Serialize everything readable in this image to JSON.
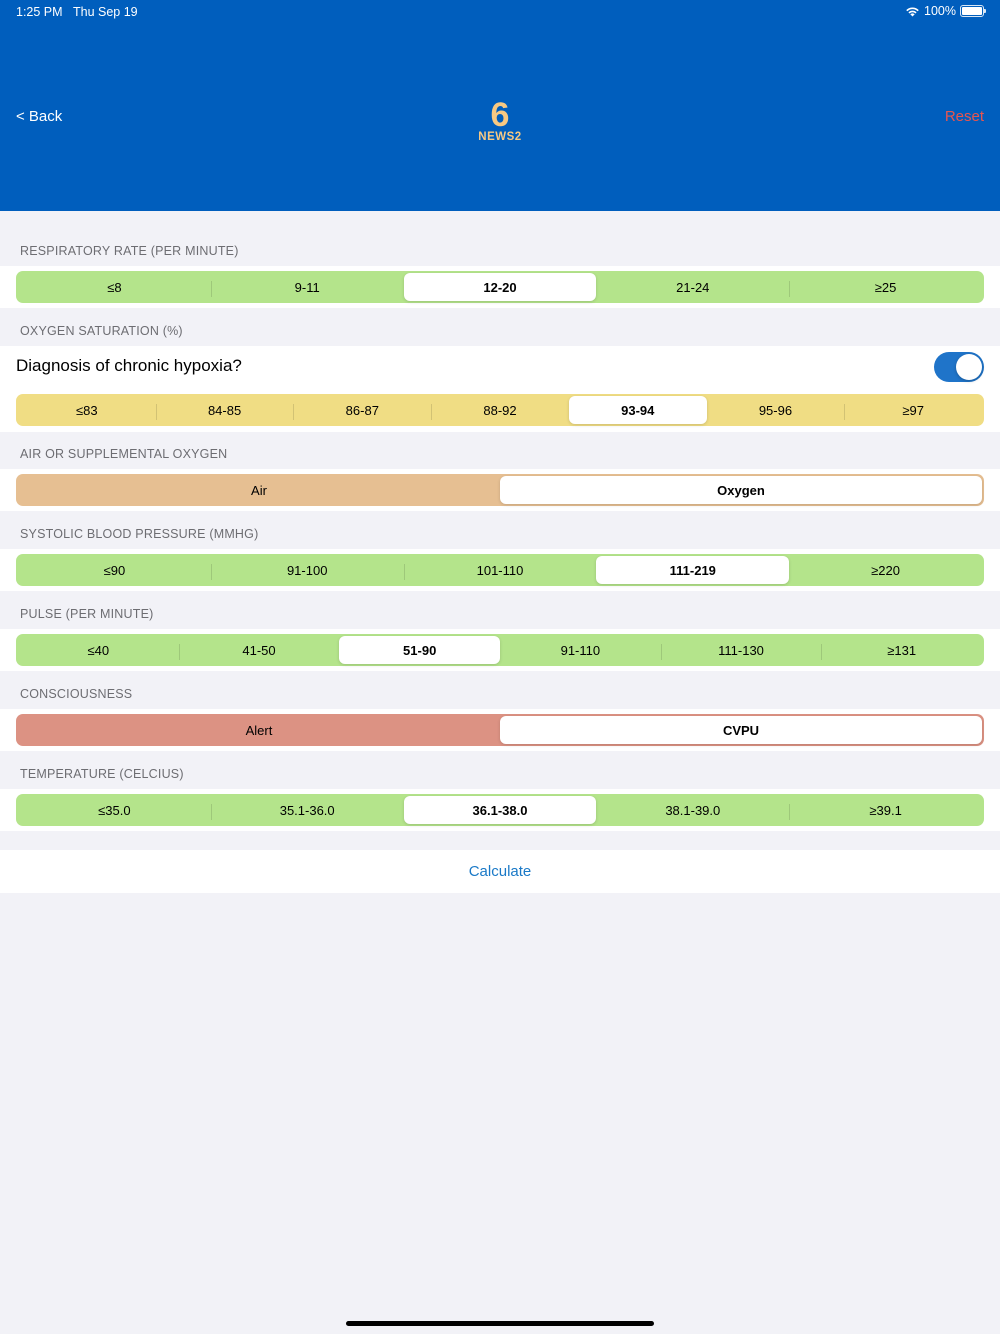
{
  "status_bar": {
    "time": "1:25 PM",
    "date": "Thu Sep 19",
    "battery": "100%"
  },
  "header": {
    "back_label": "< Back",
    "reset_label": "Reset",
    "score": "6",
    "score_label": "NEWS2"
  },
  "sections": {
    "respiratory": {
      "label": "RESPIRATORY RATE (PER MINUTE)",
      "options": [
        "≤8",
        "9-11",
        "12-20",
        "21-24",
        "≥25"
      ],
      "selected": "12-20"
    },
    "oxygen_sat": {
      "label": "OXYGEN SATURATION (%)",
      "hypoxia_label": "Diagnosis of chronic hypoxia?",
      "hypoxia_on": true,
      "options": [
        "≤83",
        "84-85",
        "86-87",
        "88-92",
        "93-94",
        "95-96",
        "≥97"
      ],
      "selected": "93-94"
    },
    "air": {
      "label": "AIR OR SUPPLEMENTAL OXYGEN",
      "options": [
        "Air",
        "Oxygen"
      ],
      "selected": "Oxygen"
    },
    "systolic": {
      "label": "SYSTOLIC BLOOD PRESSURE (MMHG)",
      "options": [
        "≤90",
        "91-100",
        "101-110",
        "111-219",
        "≥220"
      ],
      "selected": "111-219"
    },
    "pulse": {
      "label": "PULSE (PER MINUTE)",
      "options": [
        "≤40",
        "41-50",
        "51-90",
        "91-110",
        "111-130",
        "≥131"
      ],
      "selected": "51-90"
    },
    "consciousness": {
      "label": "CONSCIOUSNESS",
      "options": [
        "Alert",
        "CVPU"
      ],
      "selected": "CVPU"
    },
    "temperature": {
      "label": "TEMPERATURE (CELCIUS)",
      "options": [
        "≤35.0",
        "35.1-36.0",
        "36.1-38.0",
        "38.1-39.0",
        "≥39.1"
      ],
      "selected": "36.1-38.0"
    }
  },
  "calculate_label": "Calculate",
  "colors": {
    "header": "#005ebd",
    "score": "#f7c983",
    "reset": "#e8554e",
    "green": "#b4e48b",
    "yellow": "#f0dd84",
    "tan": "#e6bf92",
    "red": "#dc9283",
    "link": "#1a79c7",
    "toggle": "#1f74c9"
  }
}
